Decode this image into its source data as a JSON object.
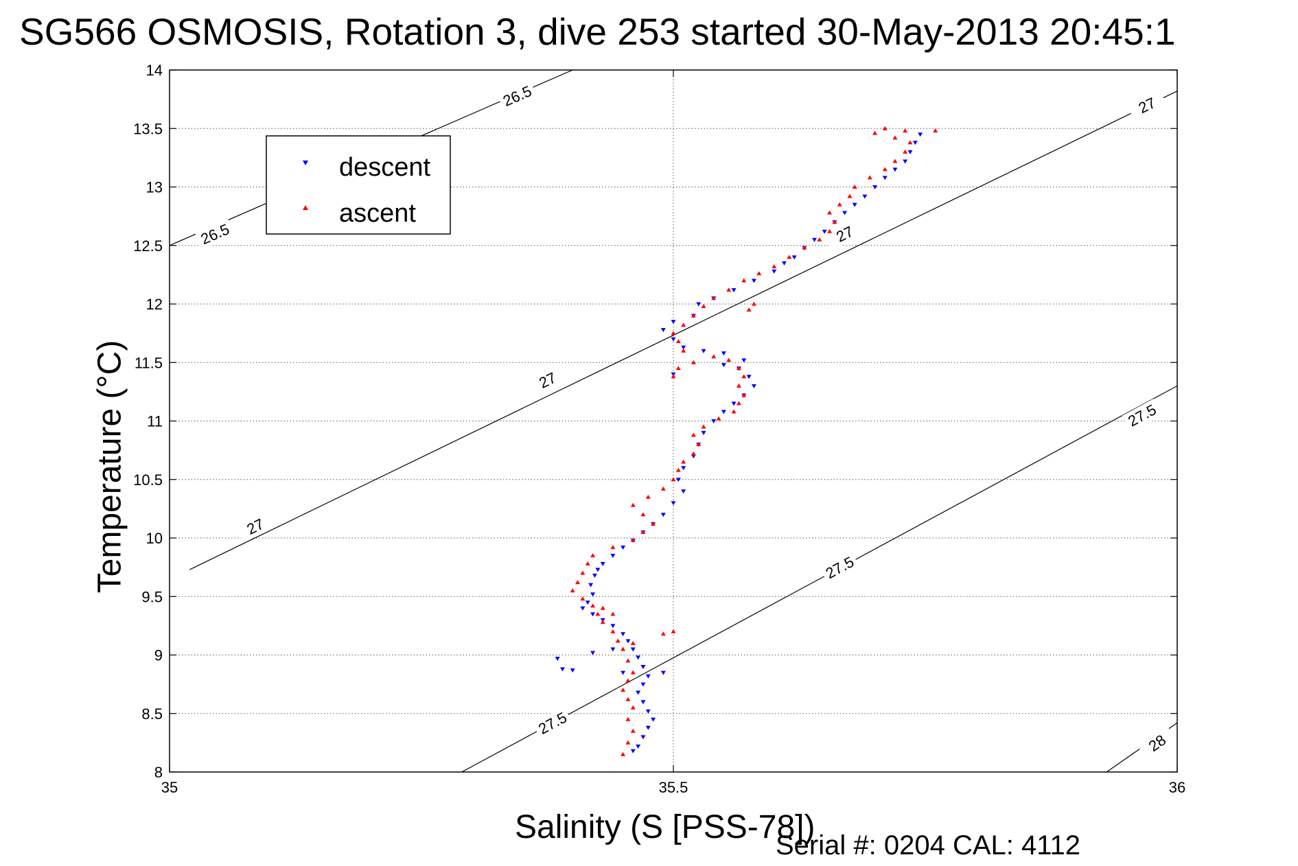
{
  "chart_data": {
    "type": "scatter",
    "title": "SG566 OSMOSIS, Rotation 3, dive 253 started 30-May-2013 20:45:1",
    "xlabel": "Salinity (S [PSS-78])",
    "ylabel": "Temperature (°C)",
    "annotation": "Serial #: 0204  CAL: 4112",
    "xlim": [
      35,
      36
    ],
    "ylim": [
      8,
      14
    ],
    "x_ticks": [
      35,
      35.5,
      36
    ],
    "x_tick_labels": [
      "35",
      "35.5",
      "36"
    ],
    "y_ticks": [
      8,
      8.5,
      9,
      9.5,
      10,
      10.5,
      11,
      11.5,
      12,
      12.5,
      13,
      13.5,
      14
    ],
    "y_tick_labels": [
      "8",
      "8.5",
      "9",
      "9.5",
      "10",
      "10.5",
      "11",
      "11.5",
      "12",
      "12.5",
      "13",
      "13.5",
      "14"
    ],
    "grid": true,
    "legend_position": "top-left",
    "density_contours": [
      {
        "value": 26.5,
        "points": [
          [
            35,
            12.5
          ],
          [
            35.4,
            14.0
          ]
        ],
        "labels": [
          {
            "text": "26.5",
            "s": 35.045,
            "t": 12.6
          },
          {
            "text": "26.5",
            "s": 35.345,
            "t": 13.78
          }
        ]
      },
      {
        "value": 27,
        "points": [
          [
            35.02,
            9.73
          ],
          [
            36,
            13.82
          ]
        ],
        "labels": [
          {
            "text": "27",
            "s": 35.085,
            "t": 10.1
          },
          {
            "text": "27",
            "s": 35.375,
            "t": 11.35
          },
          {
            "text": "27",
            "s": 35.67,
            "t": 12.6
          },
          {
            "text": "27",
            "s": 35.97,
            "t": 13.7
          }
        ]
      },
      {
        "value": 27.5,
        "points": [
          [
            35.29,
            8.0
          ],
          [
            36,
            11.3
          ]
        ],
        "labels": [
          {
            "text": "27.5",
            "s": 35.38,
            "t": 8.42
          },
          {
            "text": "27.5",
            "s": 35.665,
            "t": 9.75
          },
          {
            "text": "27.5",
            "s": 35.965,
            "t": 11.05
          }
        ]
      },
      {
        "value": 28,
        "points": [
          [
            35.93,
            8.0
          ],
          [
            36,
            8.42
          ]
        ],
        "labels": [
          {
            "text": "28",
            "s": 35.98,
            "t": 8.25
          }
        ]
      }
    ],
    "series": [
      {
        "name": "descent",
        "color": "#0000ff",
        "marker": "triangle-down",
        "points": [
          [
            35.46,
            8.18
          ],
          [
            35.465,
            8.22
          ],
          [
            35.47,
            8.3
          ],
          [
            35.475,
            8.38
          ],
          [
            35.48,
            8.45
          ],
          [
            35.475,
            8.52
          ],
          [
            35.47,
            8.6
          ],
          [
            35.465,
            8.68
          ],
          [
            35.47,
            8.75
          ],
          [
            35.475,
            8.82
          ],
          [
            35.47,
            8.9
          ],
          [
            35.465,
            8.98
          ],
          [
            35.46,
            9.05
          ],
          [
            35.455,
            9.12
          ],
          [
            35.45,
            9.18
          ],
          [
            35.44,
            9.25
          ],
          [
            35.43,
            9.3
          ],
          [
            35.42,
            9.35
          ],
          [
            35.41,
            9.4
          ],
          [
            35.415,
            9.45
          ],
          [
            35.42,
            9.52
          ],
          [
            35.418,
            9.6
          ],
          [
            35.422,
            9.68
          ],
          [
            35.425,
            9.73
          ],
          [
            35.43,
            9.78
          ],
          [
            35.44,
            9.85
          ],
          [
            35.45,
            9.92
          ],
          [
            35.46,
            9.98
          ],
          [
            35.47,
            10.05
          ],
          [
            35.48,
            10.12
          ],
          [
            35.49,
            10.2
          ],
          [
            35.5,
            10.3
          ],
          [
            35.51,
            10.4
          ],
          [
            35.505,
            10.5
          ],
          [
            35.51,
            10.6
          ],
          [
            35.52,
            10.7
          ],
          [
            35.525,
            10.8
          ],
          [
            35.53,
            10.9
          ],
          [
            35.54,
            11.0
          ],
          [
            35.55,
            11.08
          ],
          [
            35.56,
            11.15
          ],
          [
            35.57,
            11.22
          ],
          [
            35.58,
            11.3
          ],
          [
            35.575,
            11.38
          ],
          [
            35.565,
            11.45
          ],
          [
            35.57,
            11.52
          ],
          [
            35.55,
            11.58
          ],
          [
            35.53,
            11.6
          ],
          [
            35.51,
            11.63
          ],
          [
            35.5,
            11.7
          ],
          [
            35.49,
            11.78
          ],
          [
            35.5,
            11.85
          ],
          [
            35.52,
            11.9
          ],
          [
            35.525,
            12.0
          ],
          [
            35.54,
            12.05
          ],
          [
            35.56,
            12.12
          ],
          [
            35.58,
            12.2
          ],
          [
            35.6,
            12.28
          ],
          [
            35.61,
            12.35
          ],
          [
            35.62,
            12.4
          ],
          [
            35.63,
            12.48
          ],
          [
            35.64,
            12.55
          ],
          [
            35.65,
            12.62
          ],
          [
            35.66,
            12.7
          ],
          [
            35.67,
            12.78
          ],
          [
            35.68,
            12.85
          ],
          [
            35.69,
            12.92
          ],
          [
            35.7,
            13.0
          ],
          [
            35.71,
            13.08
          ],
          [
            35.72,
            13.15
          ],
          [
            35.73,
            13.22
          ],
          [
            35.735,
            13.3
          ],
          [
            35.74,
            13.38
          ],
          [
            35.745,
            13.45
          ],
          [
            35.385,
            8.97
          ],
          [
            35.39,
            8.88
          ],
          [
            35.4,
            8.87
          ],
          [
            35.45,
            8.85
          ],
          [
            35.47,
            8.9
          ],
          [
            35.49,
            8.85
          ],
          [
            35.44,
            9.05
          ],
          [
            35.42,
            9.02
          ],
          [
            35.5,
            11.4
          ],
          [
            35.55,
            11.48
          ]
        ]
      },
      {
        "name": "ascent",
        "color": "#ff0000",
        "marker": "triangle-up",
        "points": [
          [
            35.45,
            8.15
          ],
          [
            35.455,
            8.25
          ],
          [
            35.46,
            8.35
          ],
          [
            35.455,
            8.45
          ],
          [
            35.46,
            8.55
          ],
          [
            35.455,
            8.62
          ],
          [
            35.45,
            8.7
          ],
          [
            35.455,
            8.78
          ],
          [
            35.46,
            8.85
          ],
          [
            35.455,
            8.95
          ],
          [
            35.45,
            9.05
          ],
          [
            35.445,
            9.12
          ],
          [
            35.44,
            9.2
          ],
          [
            35.43,
            9.28
          ],
          [
            35.425,
            9.35
          ],
          [
            35.42,
            9.42
          ],
          [
            35.41,
            9.48
          ],
          [
            35.4,
            9.55
          ],
          [
            35.405,
            9.62
          ],
          [
            35.41,
            9.7
          ],
          [
            35.415,
            9.78
          ],
          [
            35.42,
            9.85
          ],
          [
            35.44,
            9.92
          ],
          [
            35.46,
            9.98
          ],
          [
            35.47,
            10.05
          ],
          [
            35.48,
            10.12
          ],
          [
            35.47,
            10.2
          ],
          [
            35.46,
            10.28
          ],
          [
            35.475,
            10.35
          ],
          [
            35.49,
            10.42
          ],
          [
            35.5,
            10.5
          ],
          [
            35.505,
            10.58
          ],
          [
            35.51,
            10.65
          ],
          [
            35.52,
            10.72
          ],
          [
            35.525,
            10.8
          ],
          [
            35.52,
            10.88
          ],
          [
            35.53,
            10.95
          ],
          [
            35.545,
            11.02
          ],
          [
            35.56,
            11.08
          ],
          [
            35.565,
            11.15
          ],
          [
            35.57,
            11.22
          ],
          [
            35.565,
            11.3
          ],
          [
            35.57,
            11.38
          ],
          [
            35.565,
            11.45
          ],
          [
            35.555,
            11.52
          ],
          [
            35.54,
            11.55
          ],
          [
            35.52,
            11.5
          ],
          [
            35.505,
            11.45
          ],
          [
            35.5,
            11.38
          ],
          [
            35.51,
            11.6
          ],
          [
            35.505,
            11.68
          ],
          [
            35.5,
            11.75
          ],
          [
            35.51,
            11.82
          ],
          [
            35.52,
            11.9
          ],
          [
            35.53,
            11.98
          ],
          [
            35.54,
            12.05
          ],
          [
            35.555,
            12.12
          ],
          [
            35.57,
            12.2
          ],
          [
            35.585,
            12.26
          ],
          [
            35.6,
            12.32
          ],
          [
            35.615,
            12.4
          ],
          [
            35.63,
            12.48
          ],
          [
            35.645,
            12.55
          ],
          [
            35.655,
            12.62
          ],
          [
            35.66,
            12.7
          ],
          [
            35.655,
            12.78
          ],
          [
            35.665,
            12.85
          ],
          [
            35.675,
            12.92
          ],
          [
            35.68,
            13.0
          ],
          [
            35.695,
            13.08
          ],
          [
            35.71,
            13.15
          ],
          [
            35.72,
            13.22
          ],
          [
            35.73,
            13.3
          ],
          [
            35.735,
            13.38
          ],
          [
            35.72,
            13.42
          ],
          [
            35.7,
            13.46
          ],
          [
            35.71,
            13.5
          ],
          [
            35.73,
            13.48
          ],
          [
            35.76,
            13.48
          ],
          [
            35.58,
            12.0
          ],
          [
            35.575,
            11.95
          ],
          [
            35.5,
            9.2
          ],
          [
            35.49,
            9.18
          ],
          [
            35.46,
            9.1
          ],
          [
            35.44,
            9.35
          ],
          [
            35.43,
            9.4
          ]
        ]
      }
    ]
  }
}
